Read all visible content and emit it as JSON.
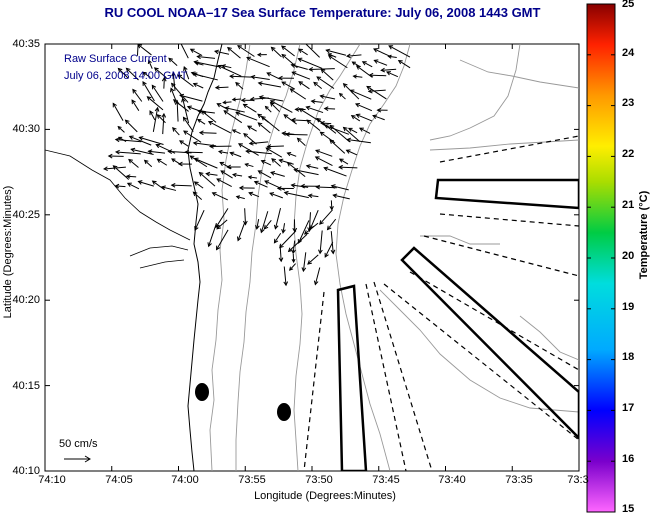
{
  "title": "RU COOL   NOAA–17  Sea Surface Temperature:  July 06, 2008 1443 GMT",
  "map": {
    "xlabel": "Longitude (Degrees:Minutes)",
    "ylabel": "Latitude (Degrees:Minutes)",
    "x_ticks": [
      "74:10",
      "74:05",
      "74:00",
      "73:55",
      "73:50",
      "73:45",
      "73:40",
      "73:35",
      "73:3"
    ],
    "y_ticks": [
      "40:35",
      "40:30",
      "40:25",
      "40:20",
      "40:15",
      "40:10"
    ],
    "overlay_line1": "Raw Surface Current",
    "overlay_line2": "July 06, 2008 14:00 GMT",
    "scale_label": "50 cm/s"
  },
  "colorbar": {
    "label": "Temperature (°C)",
    "min": 15,
    "max": 25,
    "ticks": [
      "25",
      "24",
      "23",
      "22",
      "21",
      "20",
      "19",
      "18",
      "17",
      "16",
      "15"
    ]
  }
}
